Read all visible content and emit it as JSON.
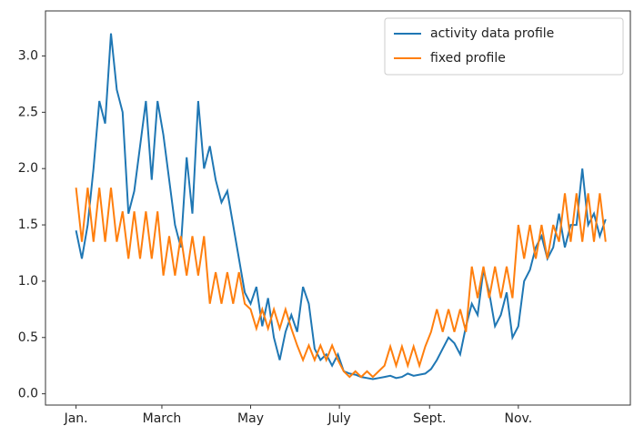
{
  "chart_data": {
    "type": "line",
    "x": [
      0,
      4,
      8,
      12,
      16,
      20,
      24,
      28,
      32,
      36,
      40,
      44,
      48,
      52,
      56,
      60,
      64,
      68,
      72,
      76,
      80,
      84,
      88,
      92,
      96,
      100,
      104,
      108,
      112,
      116,
      120,
      124,
      128,
      132,
      136,
      140,
      144,
      148,
      152,
      156,
      160,
      164,
      168,
      172,
      176,
      180,
      184,
      188,
      192,
      196,
      200,
      204,
      208,
      212,
      216,
      220,
      224,
      228,
      232,
      236,
      240,
      244,
      248,
      252,
      256,
      260,
      264,
      268,
      272,
      276,
      280,
      284,
      288,
      292,
      296,
      300,
      304,
      308,
      312,
      316,
      320,
      324,
      328,
      332,
      336,
      340,
      344,
      348,
      352,
      356,
      360,
      364
    ],
    "series": [
      {
        "name": "activity data profile",
        "color": "#1f77b4",
        "values": [
          1.45,
          1.2,
          1.5,
          2.0,
          2.6,
          2.4,
          3.2,
          2.7,
          2.5,
          1.6,
          1.8,
          2.2,
          2.6,
          1.9,
          2.6,
          2.3,
          1.9,
          1.5,
          1.3,
          2.1,
          1.6,
          2.6,
          2.0,
          2.2,
          1.9,
          1.7,
          1.8,
          1.5,
          1.2,
          0.9,
          0.8,
          0.95,
          0.6,
          0.85,
          0.5,
          0.3,
          0.55,
          0.7,
          0.55,
          0.95,
          0.8,
          0.4,
          0.3,
          0.35,
          0.25,
          0.35,
          0.2,
          0.18,
          0.17,
          0.15,
          0.14,
          0.13,
          0.14,
          0.15,
          0.16,
          0.14,
          0.15,
          0.18,
          0.16,
          0.17,
          0.18,
          0.22,
          0.3,
          0.4,
          0.5,
          0.45,
          0.35,
          0.6,
          0.8,
          0.7,
          1.1,
          0.9,
          0.6,
          0.7,
          0.9,
          0.5,
          0.6,
          1.0,
          1.1,
          1.3,
          1.4,
          1.2,
          1.3,
          1.6,
          1.3,
          1.5,
          1.5,
          2.0,
          1.5,
          1.6,
          1.4,
          1.55
        ]
      },
      {
        "name": "fixed profile",
        "color": "#ff7f0e",
        "values": [
          1.83,
          1.35,
          1.83,
          1.35,
          1.83,
          1.35,
          1.83,
          1.35,
          1.62,
          1.2,
          1.62,
          1.2,
          1.62,
          1.2,
          1.62,
          1.05,
          1.4,
          1.05,
          1.4,
          1.05,
          1.4,
          1.05,
          1.4,
          0.8,
          1.08,
          0.8,
          1.08,
          0.8,
          1.08,
          0.8,
          0.75,
          0.58,
          0.75,
          0.58,
          0.75,
          0.58,
          0.75,
          0.58,
          0.43,
          0.3,
          0.43,
          0.3,
          0.43,
          0.3,
          0.43,
          0.3,
          0.2,
          0.15,
          0.2,
          0.15,
          0.2,
          0.15,
          0.2,
          0.25,
          0.42,
          0.25,
          0.42,
          0.25,
          0.42,
          0.25,
          0.42,
          0.55,
          0.75,
          0.55,
          0.75,
          0.55,
          0.75,
          0.55,
          1.13,
          0.85,
          1.13,
          0.85,
          1.13,
          0.85,
          1.13,
          0.85,
          1.5,
          1.2,
          1.5,
          1.2,
          1.5,
          1.2,
          1.5,
          1.35,
          1.78,
          1.35,
          1.78,
          1.35,
          1.78,
          1.35,
          1.78,
          1.35
        ]
      }
    ],
    "xlim": [
      -21,
      381
    ],
    "xticks": [
      {
        "value": 0,
        "label": "Jan."
      },
      {
        "value": 59,
        "label": "March"
      },
      {
        "value": 120,
        "label": "May"
      },
      {
        "value": 181,
        "label": "July"
      },
      {
        "value": 243,
        "label": "Sept."
      },
      {
        "value": 304,
        "label": "Nov."
      }
    ],
    "ylim": [
      -0.1,
      3.4
    ],
    "yticks": [
      {
        "value": 0,
        "label": "0.0"
      },
      0.5,
      {
        "value": 1,
        "label": "1.0"
      },
      1.5,
      {
        "value": 2,
        "label": "2.0"
      },
      2.5,
      {
        "value": 3,
        "label": "3.0"
      }
    ],
    "legend": "upper right"
  }
}
